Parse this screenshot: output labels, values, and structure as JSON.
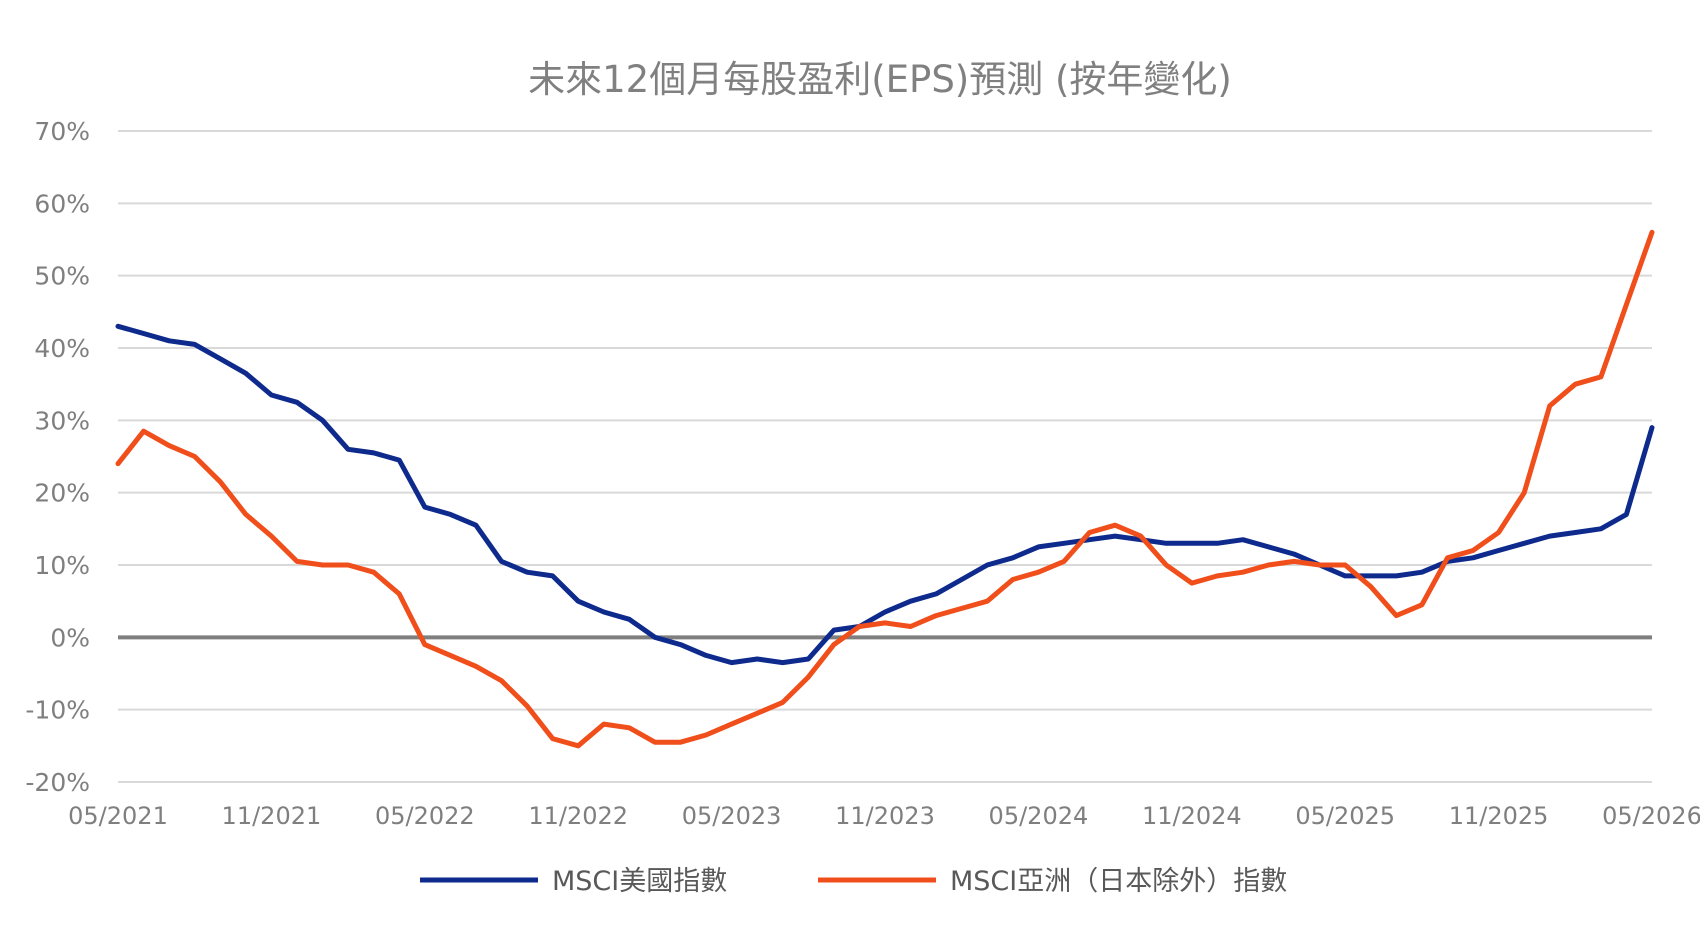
{
  "chart_data": {
    "type": "line",
    "title": "未來12個月每股盈利(EPS)預測 (按年變化)",
    "xlabel": "",
    "ylabel": "",
    "x_ticks": [
      "05/2021",
      "11/2021",
      "05/2022",
      "11/2022",
      "05/2023",
      "11/2023",
      "05/2024",
      "11/2024",
      "05/2025",
      "11/2025",
      "05/2026"
    ],
    "y_ticks": [
      "70%",
      "60%",
      "50%",
      "40%",
      "30%",
      "20%",
      "10%",
      "0%",
      "-10%",
      "-20%"
    ],
    "xlim": [
      "2021-05",
      "2026-05"
    ],
    "ylim": [
      -20,
      70
    ],
    "grid": true,
    "legend_position": "bottom",
    "series": [
      {
        "name": "MSCI美國指數",
        "color": "#0d2a8c",
        "x": [
          "2021-05",
          "2021-06",
          "2021-07",
          "2021-08",
          "2021-09",
          "2021-10",
          "2021-11",
          "2021-12",
          "2022-01",
          "2022-02",
          "2022-03",
          "2022-04",
          "2022-05",
          "2022-06",
          "2022-07",
          "2022-08",
          "2022-09",
          "2022-10",
          "2022-11",
          "2022-12",
          "2023-01",
          "2023-02",
          "2023-03",
          "2023-04",
          "2023-05",
          "2023-06",
          "2023-07",
          "2023-08",
          "2023-09",
          "2023-10",
          "2023-11",
          "2023-12",
          "2024-01",
          "2024-02",
          "2024-03",
          "2024-04",
          "2024-05",
          "2024-06",
          "2024-07",
          "2024-08",
          "2024-09",
          "2024-10",
          "2024-11",
          "2024-12",
          "2025-01",
          "2025-02",
          "2025-03",
          "2025-04",
          "2025-05",
          "2025-06",
          "2025-07",
          "2025-08",
          "2025-09",
          "2025-10",
          "2025-11",
          "2025-12",
          "2026-01",
          "2026-02",
          "2026-03",
          "2026-04",
          "2026-05"
        ],
        "y": [
          43,
          42,
          41,
          40.5,
          38.5,
          36.5,
          33.5,
          32.5,
          30,
          26,
          25.5,
          24.5,
          18,
          17,
          15.5,
          10.5,
          9,
          8.5,
          5,
          3.5,
          2.5,
          0,
          -1,
          -2.5,
          -3.5,
          -3,
          -3.5,
          -3,
          1,
          1.5,
          3.5,
          5,
          6,
          8,
          10,
          11,
          12.5,
          13,
          13.5,
          14,
          13.5,
          13,
          13,
          13,
          13.5,
          12.5,
          11.5,
          10,
          8.5,
          8.5,
          8.5,
          9,
          10.5,
          11,
          12,
          13,
          14,
          14.5,
          15,
          17,
          29
        ]
      },
      {
        "name": "MSCI亞洲（日本除外）指數",
        "color": "#f04e1a",
        "x": [
          "2021-05",
          "2021-06",
          "2021-07",
          "2021-08",
          "2021-09",
          "2021-10",
          "2021-11",
          "2021-12",
          "2022-01",
          "2022-02",
          "2022-03",
          "2022-04",
          "2022-05",
          "2022-06",
          "2022-07",
          "2022-08",
          "2022-09",
          "2022-10",
          "2022-11",
          "2022-12",
          "2023-01",
          "2023-02",
          "2023-03",
          "2023-04",
          "2023-05",
          "2023-06",
          "2023-07",
          "2023-08",
          "2023-09",
          "2023-10",
          "2023-11",
          "2023-12",
          "2024-01",
          "2024-02",
          "2024-03",
          "2024-04",
          "2024-05",
          "2024-06",
          "2024-07",
          "2024-08",
          "2024-09",
          "2024-10",
          "2024-11",
          "2024-12",
          "2025-01",
          "2025-02",
          "2025-03",
          "2025-04",
          "2025-05",
          "2025-06",
          "2025-07",
          "2025-08",
          "2025-09",
          "2025-10",
          "2025-11",
          "2025-12",
          "2026-01",
          "2026-02",
          "2026-03",
          "2026-04",
          "2026-05"
        ],
        "y": [
          24,
          28.5,
          26.5,
          25,
          21.5,
          17,
          14,
          10.5,
          10,
          10,
          9,
          6,
          -1,
          -2.5,
          -4,
          -6,
          -9.5,
          -14,
          -15,
          -12,
          -12.5,
          -14.5,
          -14.5,
          -13.5,
          -12,
          -10.5,
          -9,
          -5.5,
          -1,
          1.5,
          2,
          1.5,
          3,
          4,
          5,
          8,
          9,
          10.5,
          14.5,
          15.5,
          14,
          10,
          7.5,
          8.5,
          9,
          10,
          10.5,
          10,
          10,
          7,
          3,
          4.5,
          11,
          12,
          14.5,
          20,
          32,
          35,
          36,
          46,
          56
        ]
      }
    ]
  }
}
